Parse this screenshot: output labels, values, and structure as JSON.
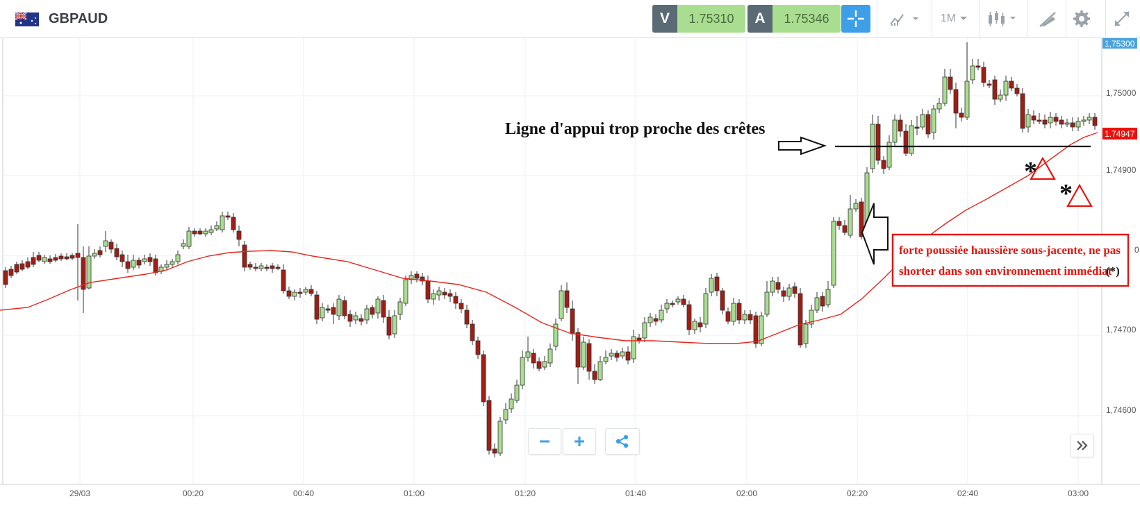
{
  "header": {
    "symbol": "GBPAUD",
    "sell_label": "V",
    "sell_price": "1.75310",
    "buy_label": "A",
    "buy_price": "1.75346",
    "timeframe": "1M"
  },
  "price_axis": {
    "ticks": [
      "1,75300",
      "1,75000",
      "1,74900",
      "1,74700",
      "1,74600"
    ],
    "partial_tick": "0",
    "current_price": "1.74947"
  },
  "time_axis": {
    "ticks": [
      "29/03",
      "00:20",
      "00:40",
      "01:00",
      "01:20",
      "01:40",
      "02:00",
      "02:20",
      "02:40",
      "03:00"
    ]
  },
  "annotations": {
    "support_line_label": "Ligne d'appui trop proche des crêtes",
    "callout_line1": "forte poussiée haussière sous-jacente, ne pas",
    "callout_line2": "shorter dans son environnement immédiat",
    "callout_mark": "(*)",
    "star_mark": "*"
  },
  "colors": {
    "bull_candle": "#a9dd90",
    "bear_candle": "#a11d14",
    "moving_average": "#e8251c",
    "current_price_badge": "#e8120c",
    "top_price_badge": "#4aa3df",
    "accent": "#3d9fe8"
  },
  "icons": {
    "flag": "uk-australia-flag-icon",
    "crosshair": "crosshair-icon",
    "indicators": "indicators-icon",
    "candles": "candlestick-icon",
    "draw": "drawing-tools-icon",
    "settings": "gear-icon",
    "fullscreen": "fullscreen-icon",
    "zoom_out": "minus-icon",
    "zoom_in": "plus-icon",
    "share": "share-icon",
    "scroll_end": "double-chevron-right-icon"
  }
}
